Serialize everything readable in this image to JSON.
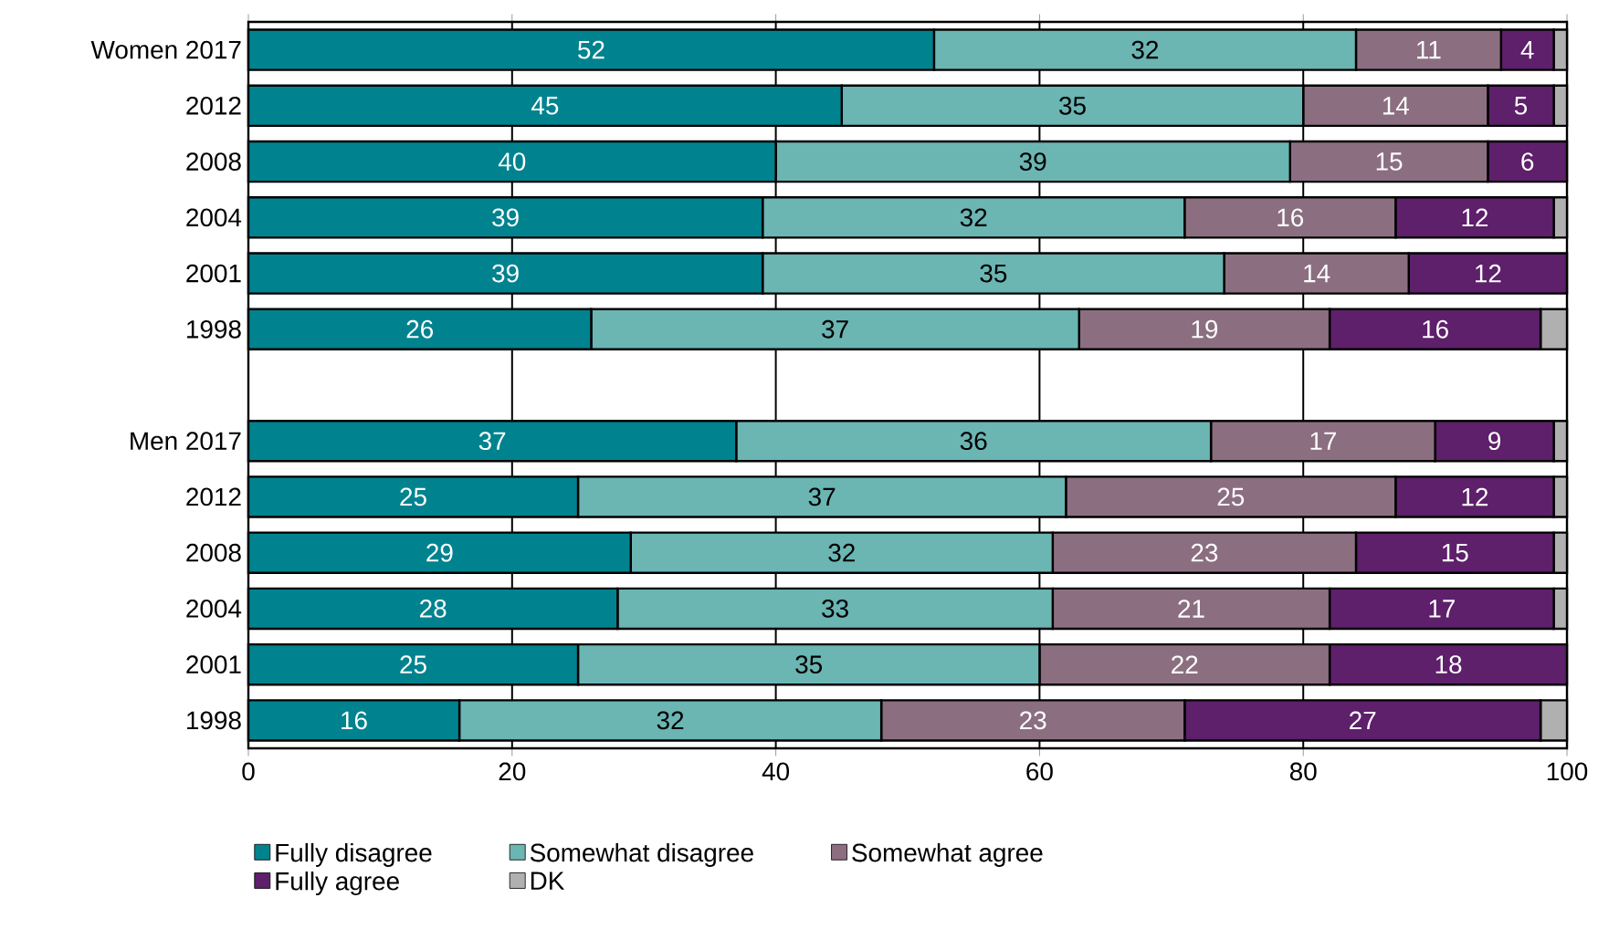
{
  "chart_data": {
    "type": "bar",
    "orientation": "horizontal",
    "stacked": true,
    "categories": [
      "Women 2017",
      "2012",
      "2008",
      "2004",
      "2001",
      "1998",
      null,
      "Men 2017",
      "2012",
      "2008",
      "2004",
      "2001",
      "1998"
    ],
    "series": [
      {
        "name": "Fully disagree",
        "color": "#00838f",
        "values": [
          52,
          45,
          40,
          39,
          39,
          26,
          null,
          37,
          25,
          29,
          28,
          25,
          16
        ],
        "value_labels": [
          "52",
          "45",
          "40",
          "39",
          "39",
          "26",
          null,
          "37",
          "25",
          "29",
          "28",
          "25",
          "16"
        ]
      },
      {
        "name": "Somewhat disagree",
        "color": "#6bb5b3",
        "values": [
          32,
          35,
          39,
          32,
          35,
          37,
          null,
          36,
          37,
          32,
          33,
          35,
          32
        ],
        "value_labels": [
          "32",
          "35",
          "39",
          "32",
          "35",
          "37",
          null,
          "36",
          "37",
          "32",
          "33",
          "35",
          "32"
        ]
      },
      {
        "name": "Somewhat agree",
        "color": "#8b6f80",
        "values": [
          11,
          14,
          15,
          16,
          14,
          19,
          null,
          17,
          25,
          23,
          21,
          22,
          23
        ],
        "value_labels": [
          "11",
          "14",
          "15",
          "16",
          "14",
          "19",
          null,
          "17",
          "25",
          "23",
          "21",
          "22",
          "23"
        ]
      },
      {
        "name": "Fully agree",
        "color": "#5e1f6b",
        "values": [
          4,
          5,
          6,
          12,
          12,
          16,
          null,
          9,
          12,
          15,
          17,
          18,
          27
        ],
        "value_labels": [
          "4",
          "5",
          "6",
          "12",
          "12",
          "16",
          null,
          "9",
          "12",
          "15",
          "17",
          "18",
          "27"
        ]
      },
      {
        "name": "DK",
        "color": "#b0b0b0",
        "values": [
          1,
          1,
          null,
          1,
          null,
          2,
          null,
          1,
          1,
          1,
          1,
          null,
          2
        ]
      }
    ],
    "xlim": [
      0,
      100
    ],
    "xticks": [
      0,
      20,
      40,
      60,
      80,
      100
    ],
    "grid": "x",
    "legend": "bottom"
  }
}
